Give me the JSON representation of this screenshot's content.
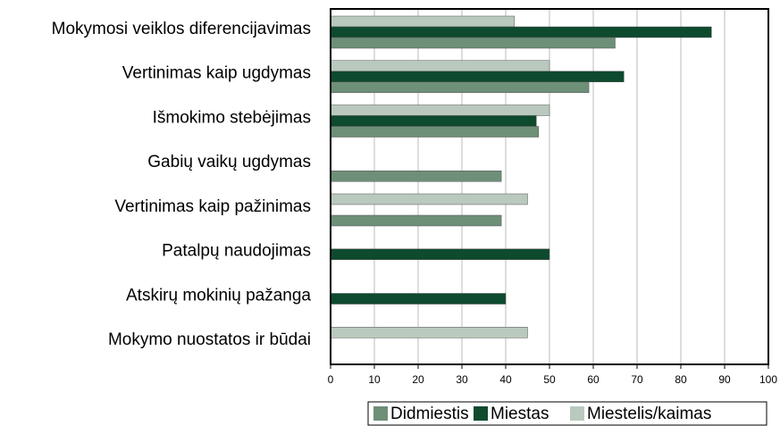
{
  "chart_data": {
    "type": "bar",
    "orientation": "horizontal",
    "categories": [
      "Mokymosi veiklos diferencijavimas",
      "Vertinimas kaip ugdymas",
      "Išmokimo stebėjimas",
      "Gabių vaikų ugdymas",
      "Vertinimas kaip pažinimas",
      "Patalpų naudojimas",
      "Atskirų mokinių pažanga",
      "Mokymo nuostatos ir būdai"
    ],
    "series": [
      {
        "name": "Didmiestis",
        "color": "#6e8f78",
        "values": [
          65,
          59,
          47.5,
          39,
          39,
          null,
          null,
          null
        ]
      },
      {
        "name": "Miestas",
        "color": "#0d4a2e",
        "values": [
          87,
          67,
          47,
          null,
          null,
          50,
          40,
          null
        ]
      },
      {
        "name": "Miestelis/kaimas",
        "color": "#b9c9bd",
        "values": [
          42,
          50,
          50,
          null,
          45,
          null,
          null,
          45
        ]
      }
    ],
    "xlim": [
      0,
      100
    ],
    "xticks": [
      0,
      10,
      20,
      30,
      40,
      50,
      60,
      70,
      80,
      90,
      100
    ],
    "grid": true,
    "legend": "bottom"
  }
}
